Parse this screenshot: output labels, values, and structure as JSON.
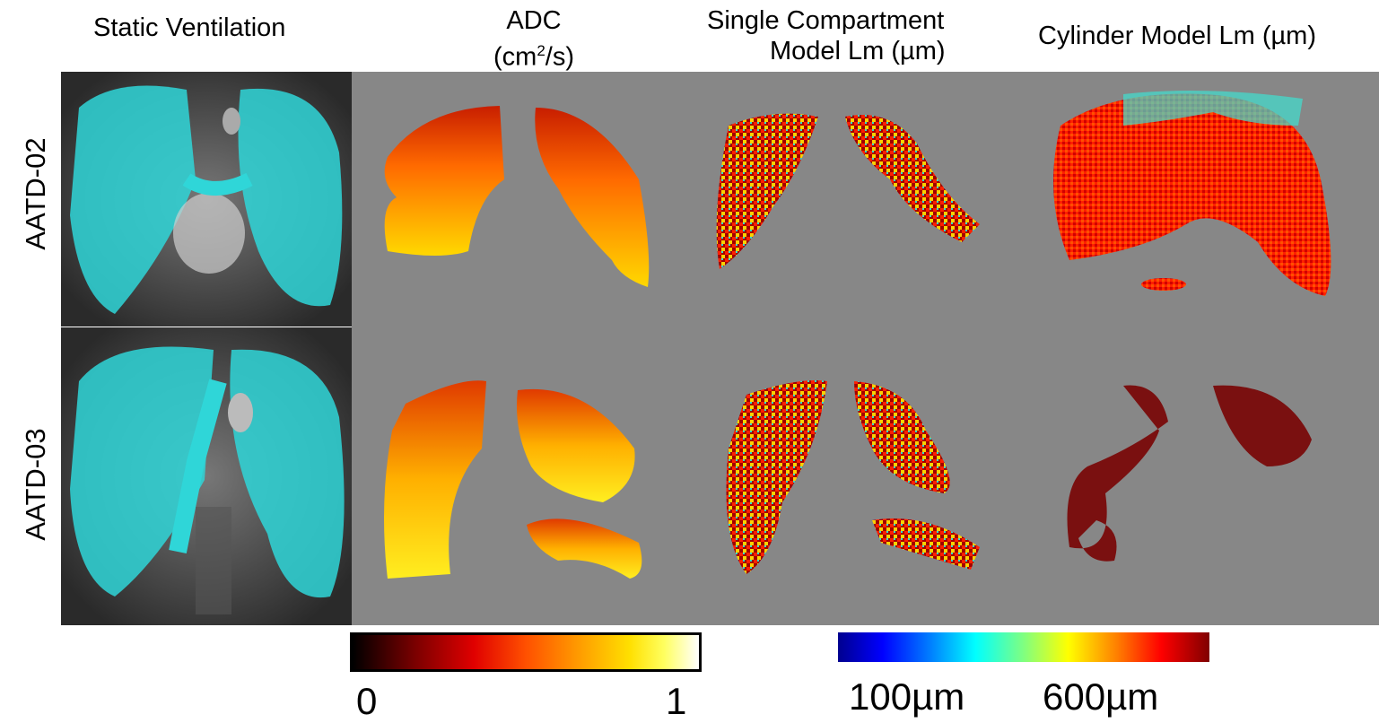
{
  "headers": {
    "col1": "Static Ventilation",
    "col2_line1": "ADC",
    "col2_line2_pre": "(cm",
    "col2_sup": "2",
    "col2_line2_post": "/s)",
    "col3_line1": "Single Compartment",
    "col3_line2": "Model Lm (µm)",
    "col4": "Cylinder Model Lm (µm)"
  },
  "rows": [
    {
      "label": "AATD-02"
    },
    {
      "label": "AATD-03"
    }
  ],
  "colorbars": {
    "adc": {
      "min_label": "0",
      "max_label": "1",
      "colormap": "hot"
    },
    "lm": {
      "low_label": "100µm",
      "high_label": "600µm",
      "colormap": "jet"
    }
  },
  "colors": {
    "background_panel": "#878787",
    "ventilation": "#2fd6d8"
  }
}
